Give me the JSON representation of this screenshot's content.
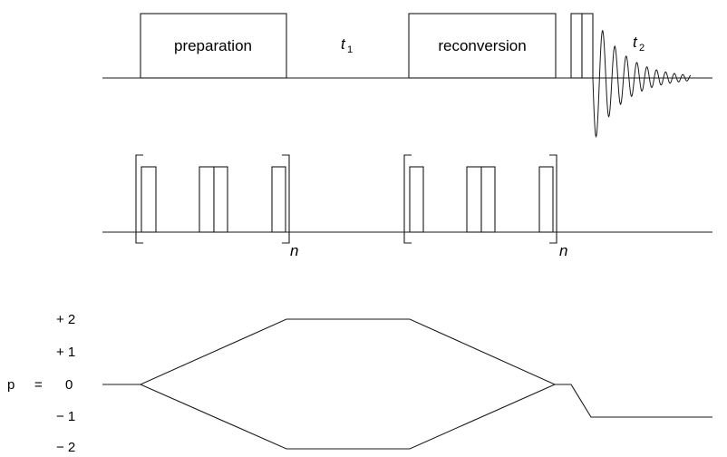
{
  "pulse_sequence": {
    "preparation_label": "preparation",
    "reconversion_label": "reconversion",
    "t1_label": "t",
    "t1_subscript": "1",
    "t2_label": "t",
    "t2_subscript": "2"
  },
  "recoupling_blocks": {
    "repeat_label_1": "n",
    "repeat_label_2": "n"
  },
  "coherence_pathway": {
    "p_label": "p",
    "equals": "=",
    "levels": [
      "+ 2",
      "+ 1",
      "0",
      "− 1",
      "− 2"
    ]
  },
  "colors": {
    "line": "#1a1a1a",
    "background": "#ffffff"
  }
}
